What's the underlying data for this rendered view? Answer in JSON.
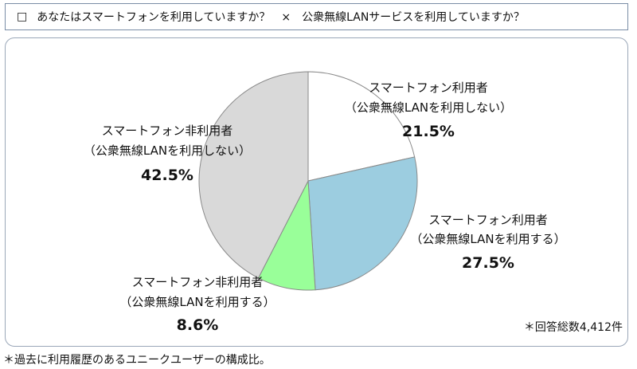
{
  "header": {
    "marker": "□",
    "question": "あなたはスマートフォンを利用していますか？　×　公衆無線LANサービスを利用していますか？"
  },
  "chart_data": {
    "type": "pie",
    "start_angle_deg": 0,
    "direction": "clockwise",
    "slices": [
      {
        "name": "スマートフォン利用者",
        "sub": "（公衆無線LANを利用しない）",
        "value": 21.5,
        "label": "21.5%",
        "color": "#ffffff"
      },
      {
        "name": "スマートフォン利用者",
        "sub": "（公衆無線LANを利用する）",
        "value": 27.5,
        "label": "27.5%",
        "color": "#9ccde0"
      },
      {
        "name": "スマートフォン非利用者",
        "sub": "（公衆無線LANを利用する）",
        "value": 8.6,
        "label": "8.6%",
        "color": "#99ff99"
      },
      {
        "name": "スマートフォン非利用者",
        "sub": "（公衆無線LANを利用しない）",
        "value": 42.5,
        "label": "42.5%",
        "color": "#d9d9d9"
      }
    ]
  },
  "total_note": "＊回答総数4,412件",
  "footnote": "＊過去に利用履歴のあるユニークユーザーの構成比。"
}
